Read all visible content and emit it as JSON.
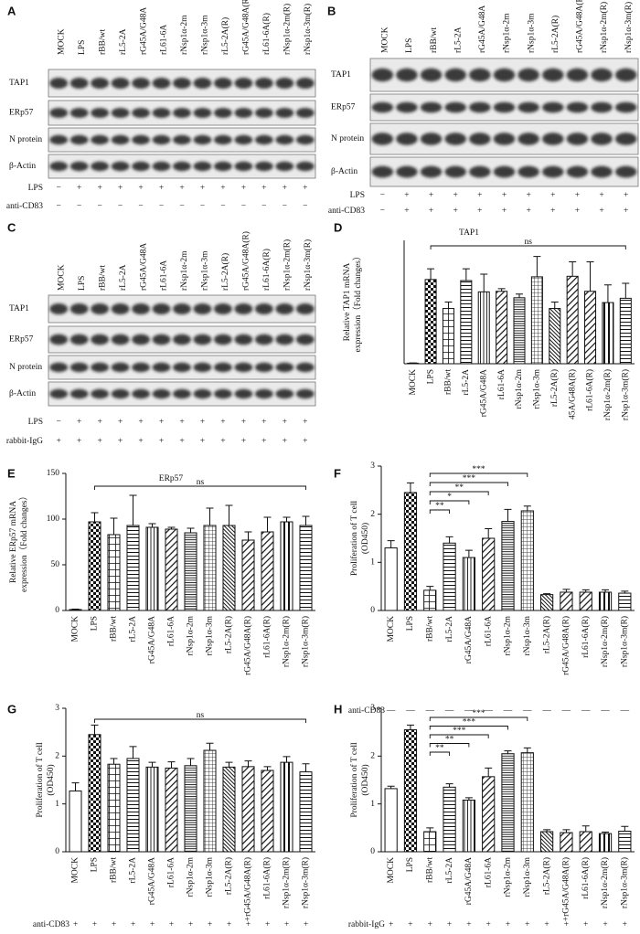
{
  "blots": [
    {
      "panel": "A",
      "lanes": [
        "MOCK",
        "LPS",
        "rBB/wt",
        "rL5-2A",
        "rG45A/G48A",
        "rL61-6A",
        "rNsp1α-2m",
        "rNsp1α-3m",
        "rL5-2A(R)",
        "rG45A/G48A(R)",
        "rL61-6A(R)",
        "rNsp1α-2m(R)",
        "rNsp1α-3m(R)"
      ],
      "rows": [
        "TAP1",
        "ERp57",
        "N protein",
        "β-Actin"
      ],
      "treatments": [
        {
          "label": "LPS",
          "marks": [
            "−",
            "+",
            "+",
            "+",
            "+",
            "+",
            "+",
            "+",
            "+",
            "+",
            "+",
            "+",
            "+"
          ]
        },
        {
          "label": "anti-CD83",
          "marks": [
            "−",
            "−",
            "−",
            "−",
            "−",
            "−",
            "−",
            "−",
            "−",
            "−",
            "−",
            "−",
            "−"
          ]
        }
      ]
    },
    {
      "panel": "B",
      "lanes": [
        "MOCK",
        "LPS",
        "rBB/wt",
        "rL5-2A",
        "rG45A/G48A",
        "rNsp1α-2m",
        "rNsp1α-3m",
        "rL5-2A(R)",
        "rG45A/G48A(R)",
        "rNsp1α-2m(R)",
        "rNsp1α-3m(R)"
      ],
      "rows": [
        "TAP1",
        "ERp57",
        "N protein",
        "β-Actin"
      ],
      "treatments": [
        {
          "label": "LPS",
          "marks": [
            "−",
            "+",
            "+",
            "+",
            "+",
            "+",
            "+",
            "+",
            "+",
            "+",
            "+"
          ]
        },
        {
          "label": "anti-CD83",
          "marks": [
            "−",
            "+",
            "+",
            "+",
            "+",
            "+",
            "+",
            "+",
            "+",
            "+",
            "+"
          ]
        }
      ]
    },
    {
      "panel": "C",
      "lanes": [
        "MOCK",
        "LPS",
        "rBB/wt",
        "rL5-2A",
        "rG45A/G48A",
        "rL61-6A",
        "rNsp1α-2m",
        "rNsp1α-3m",
        "rL5-2A(R)",
        "rG45A/G48A(R)",
        "rL61-6A(R)",
        "rNsp1α-2m(R)",
        "rNsp1α-3m(R)"
      ],
      "rows": [
        "TAP1",
        "ERp57",
        "N protein",
        "β-Actin"
      ],
      "treatments": [
        {
          "label": "LPS",
          "marks": [
            "−",
            "+",
            "+",
            "+",
            "+",
            "+",
            "+",
            "+",
            "+",
            "+",
            "+",
            "+",
            "+"
          ]
        },
        {
          "label": "rabbit-IgG",
          "marks": [
            "+",
            "+",
            "+",
            "+",
            "+",
            "+",
            "+",
            "+",
            "+",
            "+",
            "+",
            "+",
            "+"
          ]
        }
      ]
    }
  ],
  "chart_data": [
    {
      "type": "bar",
      "panel": "D",
      "title": "TAP1",
      "ylabel": [
        "Relative TAP1 mRNA",
        "expression（Fold changes）"
      ],
      "categories": [
        "MOCK",
        "LPS",
        "rBB/wt",
        "rL5-2A",
        "rG45A/G48A",
        "rL61-6A",
        "rNsp1α-2m",
        "rNsp1α-3m",
        "rL5-2A(R)",
        "45A/G48A(R)",
        "rL61-6A(R)",
        "rNsp1α-2m(R)",
        "rNsp1α-3m(R)"
      ],
      "values": [
        1,
        157,
        103,
        155,
        134,
        135,
        123,
        162,
        103,
        163,
        135,
        114,
        122
      ],
      "errors": [
        0.5,
        20,
        12,
        22,
        33,
        5,
        7,
        38,
        12,
        27,
        55,
        33,
        28
      ],
      "ylim": [
        0,
        230
      ],
      "patterns": [
        "none",
        "checker",
        "grid",
        "hlines",
        "vlines",
        "diag",
        "hdense",
        "gridfine",
        "diagback",
        "diag",
        "diag",
        "vthick",
        "hlines"
      ],
      "brackets": [
        {
          "from": "LPS",
          "to": "rNsp1α-3m(R)",
          "label": "ns"
        }
      ]
    },
    {
      "type": "bar",
      "panel": "E",
      "title": "ERp57",
      "ylabel": [
        "Relative ERp57 mRNA",
        "expression（Fold changes）"
      ],
      "categories": [
        "MOCK",
        "LPS",
        "rBB/wt",
        "rL5-2A",
        "rG45A/G48A",
        "rL61-6A",
        "rNsp1α-2m",
        "rNsp1α-3m",
        "rL5-2A(R)",
        "rG45A/G48A(R)",
        "rL61-6A(R)",
        "rNsp1α-2m(R)",
        "rNsp1α-3m(R)"
      ],
      "values": [
        1,
        97,
        83,
        93,
        91,
        89,
        85,
        93,
        93,
        77,
        86,
        97,
        93
      ],
      "errors": [
        0.5,
        10,
        18,
        33,
        4,
        2,
        5,
        19,
        22,
        9,
        16,
        5,
        10
      ],
      "ylim": [
        0,
        150
      ],
      "yticks": [
        0,
        50,
        100,
        150
      ],
      "patterns": [
        "none",
        "checker",
        "grid",
        "hlines",
        "vlines",
        "diag",
        "hdense",
        "gridfine",
        "diagback",
        "diag",
        "diag",
        "vthick",
        "hlines"
      ],
      "brackets": [
        {
          "from": "LPS",
          "to": "rNsp1α-3m(R)",
          "label": "ns"
        }
      ]
    },
    {
      "type": "bar",
      "panel": "F",
      "ylabel": [
        "Proliferation of T cell",
        "(OD450)"
      ],
      "categories": [
        "MOCK",
        "LPS",
        "rBB/wt",
        "rL5-2A",
        "rG45A/G48A",
        "rL61-6A",
        "rNsp1α-2m",
        "rNsp1α-3m",
        "rL5-2A(R)",
        "rG45A/G48A(R)",
        "rL61-6A(R)",
        "rNsp1α-2m(R)",
        "rNsp1α-3m(R)"
      ],
      "values": [
        1.3,
        2.45,
        0.42,
        1.4,
        1.1,
        1.5,
        1.85,
        2.07,
        0.33,
        0.38,
        0.38,
        0.38,
        0.36
      ],
      "errors": [
        0.15,
        0.2,
        0.08,
        0.13,
        0.15,
        0.2,
        0.25,
        0.1,
        0.02,
        0.06,
        0.05,
        0.05,
        0.04
      ],
      "ylim": [
        0,
        3
      ],
      "yticks": [
        0,
        1,
        2,
        3
      ],
      "patterns": [
        "none",
        "checker",
        "grid",
        "hlines",
        "vlines",
        "diag",
        "hdense",
        "gridfine",
        "diagback",
        "diag",
        "diag",
        "vthick",
        "hlines"
      ],
      "brackets": [
        {
          "from": "rBB/wt",
          "to": "rL5-2A",
          "label": "**"
        },
        {
          "from": "rBB/wt",
          "to": "rG45A/G48A",
          "label": "*"
        },
        {
          "from": "rBB/wt",
          "to": "rL61-6A",
          "label": "**"
        },
        {
          "from": "rBB/wt",
          "to": "rNsp1α-2m",
          "label": "***"
        },
        {
          "from": "rBB/wt",
          "to": "rNsp1α-3m",
          "label": "***"
        }
      ],
      "treatment": {
        "label": "anti-CD83",
        "marks": [
          "—",
          "—",
          "—",
          "—",
          "—",
          "—",
          "—",
          "—",
          "—",
          "—",
          "—",
          "—",
          "—"
        ]
      }
    },
    {
      "type": "bar",
      "panel": "G",
      "ylabel": [
        "Proliferation of T cell",
        "(OD450)"
      ],
      "categories": [
        "MOCK",
        "LPS",
        "rBB/wt",
        "rL5-2A",
        "rG45A/G48A",
        "rL61-6A",
        "rNsp1α-2m",
        "rNsp1α-3m",
        "rL5-2A(R)",
        "+rG45A/G48A(R)",
        "rL61-6A(R)",
        "rNsp1α-2m(R)",
        "rNsp1α-3m(R)"
      ],
      "values": [
        1.27,
        2.45,
        1.83,
        1.95,
        1.77,
        1.75,
        1.8,
        2.12,
        1.77,
        1.78,
        1.7,
        1.87,
        1.67
      ],
      "errors": [
        0.17,
        0.2,
        0.12,
        0.25,
        0.1,
        0.13,
        0.15,
        0.15,
        0.1,
        0.12,
        0.08,
        0.12,
        0.17
      ],
      "ylim": [
        0,
        3
      ],
      "yticks": [
        0,
        1,
        2,
        3
      ],
      "patterns": [
        "none",
        "checker",
        "grid",
        "hlines",
        "vlines",
        "diag",
        "hdense",
        "gridfine",
        "diagback",
        "diag",
        "diag",
        "vthick",
        "hlines"
      ],
      "brackets": [
        {
          "from": "LPS",
          "to": "rNsp1α-3m(R)",
          "label": "ns"
        }
      ],
      "treatment": {
        "label": "anti-CD83",
        "marks": [
          "+",
          "+",
          "+",
          "+",
          "+",
          "+",
          "+",
          "+",
          "+",
          "+",
          "+",
          "+",
          "+"
        ]
      }
    },
    {
      "type": "bar",
      "panel": "H",
      "ylabel": [
        "Proliferation of T cell",
        "(OD450)"
      ],
      "categories": [
        "MOCK",
        "LPS",
        "rBB/wt",
        "rL5-2A",
        "rG45A/G48A",
        "rL61-6A",
        "rNsp1α-2m",
        "rNsp1α-3m",
        "rL5-2A(R)",
        "+rG45A/G48A(R)",
        "rL61-6A(R)",
        "rNsp1α-2m(R)",
        "rNsp1α-3m(R)"
      ],
      "values": [
        1.32,
        2.55,
        0.42,
        1.35,
        1.08,
        1.57,
        2.05,
        2.07,
        0.42,
        0.4,
        0.42,
        0.38,
        0.43
      ],
      "errors": [
        0.05,
        0.1,
        0.08,
        0.07,
        0.05,
        0.18,
        0.06,
        0.1,
        0.04,
        0.06,
        0.12,
        0.03,
        0.1
      ],
      "ylim": [
        0,
        3
      ],
      "yticks": [
        0,
        1,
        2,
        3
      ],
      "patterns": [
        "none",
        "checker",
        "grid",
        "hlines",
        "vlines",
        "diag",
        "hdense",
        "gridfine",
        "diagback",
        "diag",
        "diag",
        "vthick",
        "hlines"
      ],
      "brackets": [
        {
          "from": "rBB/wt",
          "to": "rL5-2A",
          "label": "**"
        },
        {
          "from": "rBB/wt",
          "to": "rG45A/G48A",
          "label": "**"
        },
        {
          "from": "rBB/wt",
          "to": "rL61-6A",
          "label": "***"
        },
        {
          "from": "rBB/wt",
          "to": "rNsp1α-2m",
          "label": "***"
        },
        {
          "from": "rBB/wt",
          "to": "rNsp1α-3m",
          "label": "***"
        }
      ],
      "treatment": {
        "label": "rabbit-IgG",
        "marks": [
          "+",
          "+",
          "+",
          "+",
          "+",
          "+",
          "+",
          "+",
          "+",
          "+",
          "+",
          "+",
          "+"
        ]
      }
    }
  ]
}
